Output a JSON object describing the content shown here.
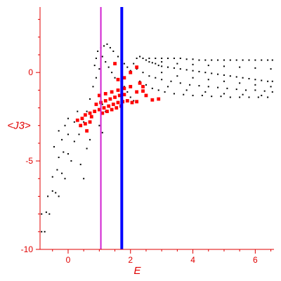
{
  "chart_data": {
    "type": "scatter",
    "title": "",
    "xlabel": "E",
    "ylabel": "<J3>",
    "xlim": [
      -0.9,
      6.6
    ],
    "ylim": [
      -10,
      3.7
    ],
    "x_ticks": [
      0,
      2,
      4,
      6
    ],
    "y_ticks": [
      0,
      -5,
      -10
    ],
    "x_tick_labels": [
      "0",
      "2",
      "4",
      "6"
    ],
    "y_tick_labels": [
      "0",
      "-5",
      "-10"
    ],
    "grid": false,
    "legend": "none",
    "colors": {
      "axis": "#e00000",
      "black_points": "#000000",
      "red_points": "#ff0000",
      "vline_1": "#d020d0",
      "vline_2": "#0000ff"
    },
    "vertical_lines": [
      {
        "x": 1.05,
        "color": "#d020d0"
      },
      {
        "x": 1.72,
        "color": "#0000ff"
      }
    ],
    "series": [
      {
        "color": "#000000",
        "marker_size": "small",
        "points": [
          [
            -0.85,
            -9.0
          ],
          [
            -0.75,
            -9.0
          ],
          [
            -0.85,
            -8.0
          ],
          [
            -0.7,
            -7.9
          ],
          [
            -0.6,
            -8.0
          ],
          [
            -0.65,
            -7.0
          ],
          [
            -0.5,
            -6.7
          ],
          [
            -0.4,
            -6.8
          ],
          [
            -0.3,
            -7.0
          ],
          [
            -0.5,
            -5.9
          ],
          [
            -0.35,
            -5.5
          ],
          [
            -0.2,
            -5.7
          ],
          [
            -0.1,
            -6.0
          ],
          [
            -0.3,
            -4.8
          ],
          [
            -0.15,
            -4.5
          ],
          [
            0.0,
            -4.6
          ],
          [
            0.1,
            -5.0
          ],
          [
            -0.45,
            -4.2
          ],
          [
            -0.2,
            -3.8
          ],
          [
            0.0,
            -3.5
          ],
          [
            0.2,
            -3.9
          ],
          [
            -0.3,
            -3.3
          ],
          [
            -0.1,
            -3.0
          ],
          [
            0.2,
            -2.8
          ],
          [
            0.35,
            -3.5
          ],
          [
            0.0,
            -2.6
          ],
          [
            0.3,
            -2.2
          ],
          [
            0.5,
            -2.8
          ],
          [
            0.4,
            -5.2
          ],
          [
            0.5,
            -6.0
          ],
          [
            0.6,
            -4.3
          ],
          [
            0.7,
            -3.8
          ],
          [
            0.6,
            -2.2
          ],
          [
            0.7,
            -1.5
          ],
          [
            0.8,
            -0.8
          ],
          [
            0.9,
            -0.3
          ],
          [
            1.0,
            0.2
          ],
          [
            0.85,
            0.4
          ],
          [
            0.9,
            0.8
          ],
          [
            0.95,
            1.2
          ],
          [
            1.05,
            1.4
          ],
          [
            1.15,
            1.5
          ],
          [
            1.25,
            1.6
          ],
          [
            1.35,
            1.4
          ],
          [
            1.45,
            1.2
          ],
          [
            1.1,
            0.9
          ],
          [
            1.2,
            0.6
          ],
          [
            1.3,
            0.3
          ],
          [
            1.4,
            0.0
          ],
          [
            1.5,
            -0.3
          ],
          [
            1.6,
            0.9
          ],
          [
            1.7,
            0.7
          ],
          [
            1.8,
            0.5
          ],
          [
            1.9,
            0.3
          ],
          [
            2.0,
            0.1
          ],
          [
            1.7,
            -0.5
          ],
          [
            1.8,
            -0.8
          ],
          [
            1.9,
            -1.1
          ],
          [
            2.0,
            -1.4
          ],
          [
            2.1,
            -1.6
          ],
          [
            1.1,
            -1.8
          ],
          [
            1.2,
            -2.2
          ],
          [
            1.0,
            -3.0
          ],
          [
            1.1,
            -3.4
          ],
          [
            2.1,
            0.5
          ],
          [
            2.2,
            0.8
          ],
          [
            2.3,
            0.9
          ],
          [
            2.4,
            0.8
          ],
          [
            2.5,
            0.7
          ],
          [
            2.6,
            0.6
          ],
          [
            2.7,
            0.55
          ],
          [
            2.8,
            0.5
          ],
          [
            2.9,
            0.4
          ],
          [
            3.0,
            0.35
          ],
          [
            3.2,
            0.3
          ],
          [
            3.4,
            0.25
          ],
          [
            3.6,
            0.2
          ],
          [
            3.8,
            0.15
          ],
          [
            4.0,
            0.1
          ],
          [
            4.2,
            0.05
          ],
          [
            4.4,
            0.0
          ],
          [
            4.6,
            -0.05
          ],
          [
            4.8,
            -0.1
          ],
          [
            5.0,
            -0.15
          ],
          [
            5.2,
            -0.2
          ],
          [
            5.4,
            -0.25
          ],
          [
            5.6,
            -0.3
          ],
          [
            5.8,
            -0.35
          ],
          [
            6.0,
            -0.4
          ],
          [
            6.2,
            -0.45
          ],
          [
            6.4,
            -0.5
          ],
          [
            6.55,
            -0.5
          ],
          [
            2.2,
            0.2
          ],
          [
            2.4,
            0.0
          ],
          [
            2.6,
            -0.2
          ],
          [
            2.8,
            -0.3
          ],
          [
            3.0,
            -0.4
          ],
          [
            3.3,
            -0.5
          ],
          [
            3.6,
            -0.6
          ],
          [
            3.9,
            -0.7
          ],
          [
            4.2,
            -0.75
          ],
          [
            4.5,
            -0.8
          ],
          [
            4.8,
            -0.85
          ],
          [
            5.1,
            -0.9
          ],
          [
            5.4,
            -0.95
          ],
          [
            5.7,
            -1.0
          ],
          [
            6.0,
            -1.0
          ],
          [
            6.3,
            -1.05
          ],
          [
            6.55,
            -1.1
          ],
          [
            2.3,
            -0.5
          ],
          [
            2.5,
            -0.7
          ],
          [
            2.7,
            -0.9
          ],
          [
            2.9,
            -1.0
          ],
          [
            3.1,
            -1.1
          ],
          [
            3.4,
            -1.2
          ],
          [
            3.7,
            -1.25
          ],
          [
            4.0,
            -1.3
          ],
          [
            4.3,
            -1.3
          ],
          [
            4.6,
            -1.35
          ],
          [
            4.9,
            -1.35
          ],
          [
            5.2,
            -1.4
          ],
          [
            5.5,
            -1.4
          ],
          [
            5.8,
            -1.4
          ],
          [
            6.1,
            -1.4
          ],
          [
            6.4,
            -1.4
          ],
          [
            2.6,
            0.8
          ],
          [
            2.8,
            0.8
          ],
          [
            3.0,
            0.8
          ],
          [
            3.2,
            0.8
          ],
          [
            3.4,
            0.8
          ],
          [
            3.6,
            0.8
          ],
          [
            3.8,
            0.75
          ],
          [
            4.0,
            0.75
          ],
          [
            4.2,
            0.7
          ],
          [
            4.4,
            0.7
          ],
          [
            4.6,
            0.7
          ],
          [
            4.8,
            0.7
          ],
          [
            5.0,
            0.7
          ],
          [
            5.2,
            0.7
          ],
          [
            5.4,
            0.7
          ],
          [
            5.6,
            0.7
          ],
          [
            5.8,
            0.7
          ],
          [
            6.0,
            0.7
          ],
          [
            6.2,
            0.7
          ],
          [
            6.4,
            0.7
          ],
          [
            6.55,
            0.7
          ],
          [
            3.0,
            0.6
          ],
          [
            3.5,
            0.5
          ],
          [
            4.0,
            0.45
          ],
          [
            4.5,
            0.4
          ],
          [
            5.0,
            0.35
          ],
          [
            5.5,
            0.3
          ],
          [
            6.0,
            0.25
          ],
          [
            6.5,
            0.2
          ],
          [
            3.0,
            0.0
          ],
          [
            3.5,
            -0.2
          ],
          [
            4.0,
            -0.3
          ],
          [
            4.5,
            -0.4
          ],
          [
            5.0,
            -0.5
          ],
          [
            5.5,
            -0.6
          ],
          [
            6.0,
            -0.7
          ],
          [
            6.5,
            -0.8
          ],
          [
            3.2,
            -0.8
          ],
          [
            3.8,
            -1.0
          ],
          [
            4.4,
            -1.1
          ],
          [
            5.0,
            -1.2
          ],
          [
            5.6,
            -1.25
          ],
          [
            6.2,
            -1.3
          ]
        ]
      },
      {
        "color": "#ff0000",
        "marker_size": "large",
        "points": [
          [
            0.55,
            -2.4
          ],
          [
            0.7,
            -2.3
          ],
          [
            0.85,
            -2.2
          ],
          [
            1.0,
            -2.1
          ],
          [
            1.15,
            -2.0
          ],
          [
            1.3,
            -1.9
          ],
          [
            1.45,
            -1.8
          ],
          [
            1.6,
            -1.7
          ],
          [
            1.75,
            -1.65
          ],
          [
            1.9,
            -1.6
          ],
          [
            2.05,
            -1.7
          ],
          [
            2.2,
            -1.65
          ],
          [
            0.9,
            -1.8
          ],
          [
            1.05,
            -1.7
          ],
          [
            1.2,
            -1.6
          ],
          [
            1.35,
            -1.5
          ],
          [
            1.5,
            -1.4
          ],
          [
            1.65,
            -1.3
          ],
          [
            1.8,
            -1.25
          ],
          [
            1.1,
            -2.3
          ],
          [
            1.25,
            -2.2
          ],
          [
            1.4,
            -2.1
          ],
          [
            1.55,
            -2.0
          ],
          [
            1.7,
            -1.9
          ],
          [
            1.0,
            -1.3
          ],
          [
            1.2,
            -1.2
          ],
          [
            1.4,
            -1.1
          ],
          [
            1.6,
            -1.0
          ],
          [
            1.8,
            -0.9
          ],
          [
            2.0,
            -0.8
          ],
          [
            0.4,
            -3.0
          ],
          [
            0.55,
            -2.9
          ],
          [
            0.7,
            -2.8
          ],
          [
            2.3,
            -0.6
          ],
          [
            2.4,
            -0.8
          ],
          [
            2.5,
            -1.3
          ],
          [
            2.7,
            -1.55
          ],
          [
            2.9,
            -1.5
          ],
          [
            2.2,
            -1.1
          ],
          [
            2.4,
            -1.05
          ],
          [
            1.6,
            -0.4
          ],
          [
            1.8,
            -0.3
          ],
          [
            2.0,
            0.0
          ],
          [
            2.2,
            0.3
          ],
          [
            1.5,
            0.5
          ],
          [
            0.3,
            -2.7
          ],
          [
            0.45,
            -2.6
          ],
          [
            0.6,
            -3.3
          ],
          [
            0.75,
            -2.5
          ]
        ]
      }
    ]
  }
}
